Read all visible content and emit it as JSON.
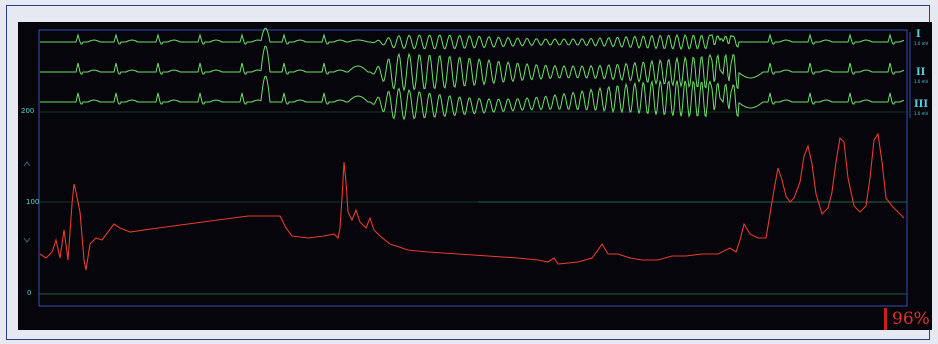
{
  "monitor": {
    "ecg_leads": [
      {
        "name": "I",
        "sub": "1.0 mV"
      },
      {
        "name": "II",
        "sub": "1.0 mV"
      },
      {
        "name": "III",
        "sub": "1.0 mV"
      }
    ],
    "ecg_scale_label": "200",
    "pressure_scale": [
      "100",
      "0"
    ],
    "spo2_value": "96%",
    "colors": {
      "ecg": "#6ee06a",
      "pressure": "#e83a2e",
      "labels": "#5ad4dc",
      "gridline": "#1f5a3c",
      "border": "#3a4ea8"
    }
  }
}
